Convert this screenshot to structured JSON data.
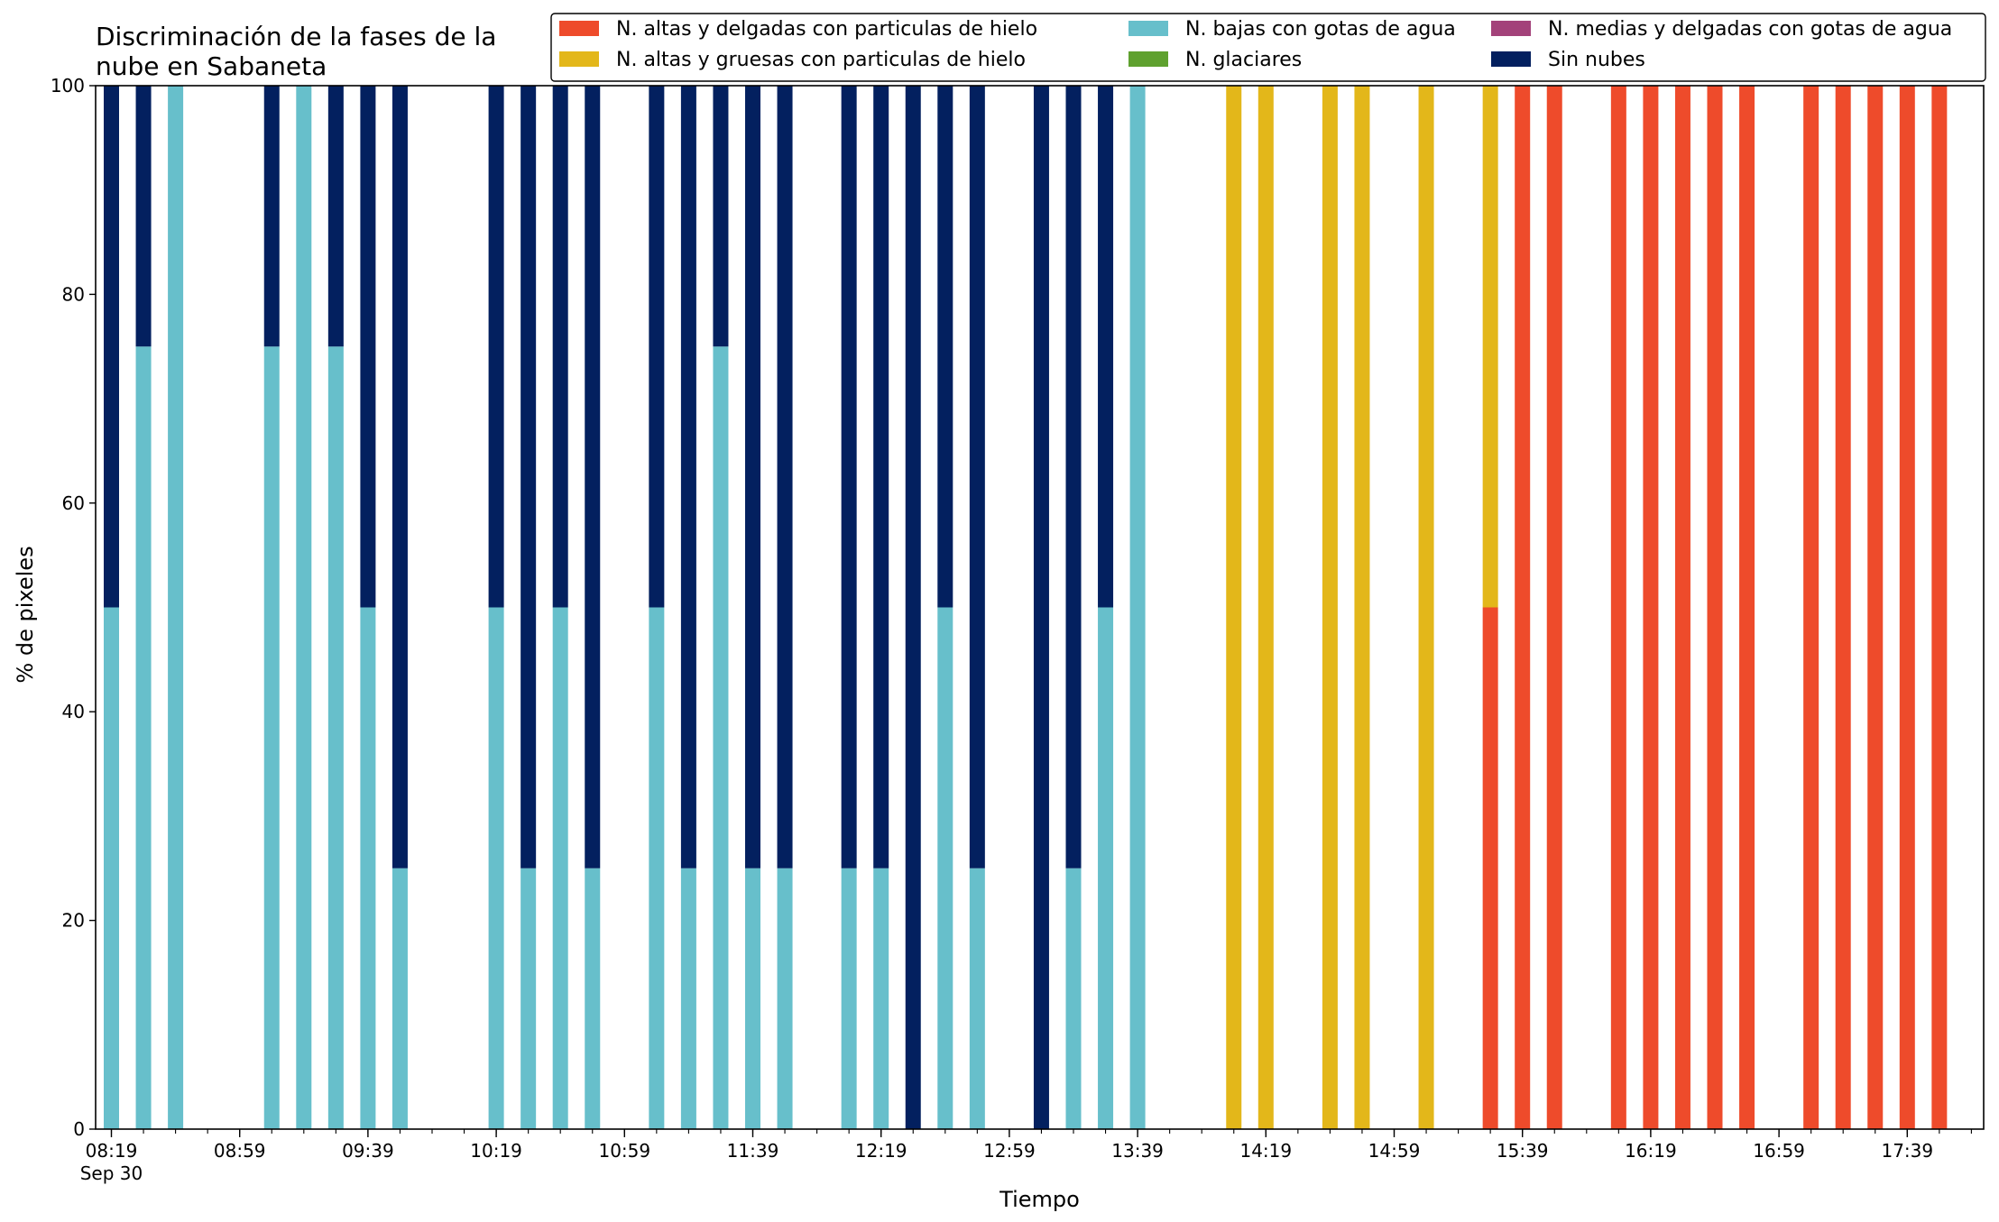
{
  "chart_data": {
    "type": "bar",
    "stacked": true,
    "title_lines": [
      "Discriminación de la fases de la",
      "nube en Sabaneta"
    ],
    "xlabel": "Tiempo",
    "ylabel": "% de pixeles",
    "ylim": [
      0,
      100
    ],
    "yticks": [
      0,
      20,
      40,
      60,
      80,
      100
    ],
    "x_start": "08:19",
    "x_end": "17:59",
    "x_step_minutes": 10,
    "xtick_labels": [
      "08:19",
      "08:59",
      "09:39",
      "10:19",
      "10:59",
      "11:39",
      "12:19",
      "12:59",
      "13:39",
      "14:19",
      "14:59",
      "15:39",
      "16:19",
      "16:59",
      "17:39"
    ],
    "xtick_sublabel": "Sep 30",
    "grid": false,
    "legend_position": "top-right",
    "legend_ncol": 3,
    "series": [
      {
        "name": "N. altas y delgadas con particulas de hielo",
        "color": "#ee4b2b"
      },
      {
        "name": "N. altas y gruesas con particulas de hielo",
        "color": "#e3b71a"
      },
      {
        "name": "N. bajas con gotas de agua",
        "color": "#67bfcb"
      },
      {
        "name": "N. glaciares",
        "color": "#5fa12f"
      },
      {
        "name": "N. medias y delgadas con gotas de agua",
        "color": "#a3427a"
      },
      {
        "name": "Sin nubes",
        "color": "#03205f"
      }
    ],
    "bars": [
      {
        "time": "08:19",
        "values": [
          0,
          0,
          50,
          0,
          0,
          50
        ]
      },
      {
        "time": "08:29",
        "values": [
          0,
          0,
          75,
          0,
          0,
          25
        ]
      },
      {
        "time": "08:39",
        "values": [
          0,
          0,
          100,
          0,
          0,
          0
        ]
      },
      {
        "time": "09:09",
        "values": [
          0,
          0,
          75,
          0,
          0,
          25
        ]
      },
      {
        "time": "09:19",
        "values": [
          0,
          0,
          100,
          0,
          0,
          0
        ]
      },
      {
        "time": "09:29",
        "values": [
          0,
          0,
          75,
          0,
          0,
          25
        ]
      },
      {
        "time": "09:39",
        "values": [
          0,
          0,
          50,
          0,
          0,
          50
        ]
      },
      {
        "time": "09:49",
        "values": [
          0,
          0,
          25,
          0,
          0,
          75
        ]
      },
      {
        "time": "10:19",
        "values": [
          0,
          0,
          50,
          0,
          0,
          50
        ]
      },
      {
        "time": "10:29",
        "values": [
          0,
          0,
          25,
          0,
          0,
          75
        ]
      },
      {
        "time": "10:39",
        "values": [
          0,
          0,
          50,
          0,
          0,
          50
        ]
      },
      {
        "time": "10:49",
        "values": [
          0,
          0,
          25,
          0,
          0,
          75
        ]
      },
      {
        "time": "11:09",
        "values": [
          0,
          0,
          50,
          0,
          0,
          50
        ]
      },
      {
        "time": "11:19",
        "values": [
          0,
          0,
          25,
          0,
          0,
          75
        ]
      },
      {
        "time": "11:29",
        "values": [
          0,
          0,
          75,
          0,
          0,
          25
        ]
      },
      {
        "time": "11:39",
        "values": [
          0,
          0,
          25,
          0,
          0,
          75
        ]
      },
      {
        "time": "11:49",
        "values": [
          0,
          0,
          25,
          0,
          0,
          75
        ]
      },
      {
        "time": "12:09",
        "values": [
          0,
          0,
          25,
          0,
          0,
          75
        ]
      },
      {
        "time": "12:19",
        "values": [
          0,
          0,
          25,
          0,
          0,
          75
        ]
      },
      {
        "time": "12:29",
        "values": [
          0,
          0,
          0,
          0,
          0,
          100
        ]
      },
      {
        "time": "12:39",
        "values": [
          0,
          0,
          50,
          0,
          0,
          50
        ]
      },
      {
        "time": "12:49",
        "values": [
          0,
          0,
          25,
          0,
          0,
          75
        ]
      },
      {
        "time": "13:09",
        "values": [
          0,
          0,
          0,
          0,
          0,
          100
        ]
      },
      {
        "time": "13:19",
        "values": [
          0,
          0,
          25,
          0,
          0,
          75
        ]
      },
      {
        "time": "13:29",
        "values": [
          0,
          0,
          50,
          0,
          0,
          50
        ]
      },
      {
        "time": "13:39",
        "values": [
          0,
          0,
          100,
          0,
          0,
          0
        ]
      },
      {
        "time": "14:09",
        "values": [
          0,
          100,
          0,
          0,
          0,
          0
        ]
      },
      {
        "time": "14:19",
        "values": [
          0,
          100,
          0,
          0,
          0,
          0
        ]
      },
      {
        "time": "14:39",
        "values": [
          0,
          100,
          0,
          0,
          0,
          0
        ]
      },
      {
        "time": "14:49",
        "values": [
          0,
          100,
          0,
          0,
          0,
          0
        ]
      },
      {
        "time": "15:09",
        "values": [
          0,
          100,
          0,
          0,
          0,
          0
        ]
      },
      {
        "time": "15:29",
        "values": [
          50,
          50,
          0,
          0,
          0,
          0
        ]
      },
      {
        "time": "15:39",
        "values": [
          100,
          0,
          0,
          0,
          0,
          0
        ]
      },
      {
        "time": "15:49",
        "values": [
          100,
          0,
          0,
          0,
          0,
          0
        ]
      },
      {
        "time": "16:09",
        "values": [
          100,
          0,
          0,
          0,
          0,
          0
        ]
      },
      {
        "time": "16:19",
        "values": [
          100,
          0,
          0,
          0,
          0,
          0
        ]
      },
      {
        "time": "16:29",
        "values": [
          100,
          0,
          0,
          0,
          0,
          0
        ]
      },
      {
        "time": "16:39",
        "values": [
          100,
          0,
          0,
          0,
          0,
          0
        ]
      },
      {
        "time": "16:49",
        "values": [
          100,
          0,
          0,
          0,
          0,
          0
        ]
      },
      {
        "time": "17:09",
        "values": [
          100,
          0,
          0,
          0,
          0,
          0
        ]
      },
      {
        "time": "17:19",
        "values": [
          100,
          0,
          0,
          0,
          0,
          0
        ]
      },
      {
        "time": "17:29",
        "values": [
          100,
          0,
          0,
          0,
          0,
          0
        ]
      },
      {
        "time": "17:39",
        "values": [
          100,
          0,
          0,
          0,
          0,
          0
        ]
      },
      {
        "time": "17:49",
        "values": [
          100,
          0,
          0,
          0,
          0,
          0
        ]
      }
    ]
  }
}
